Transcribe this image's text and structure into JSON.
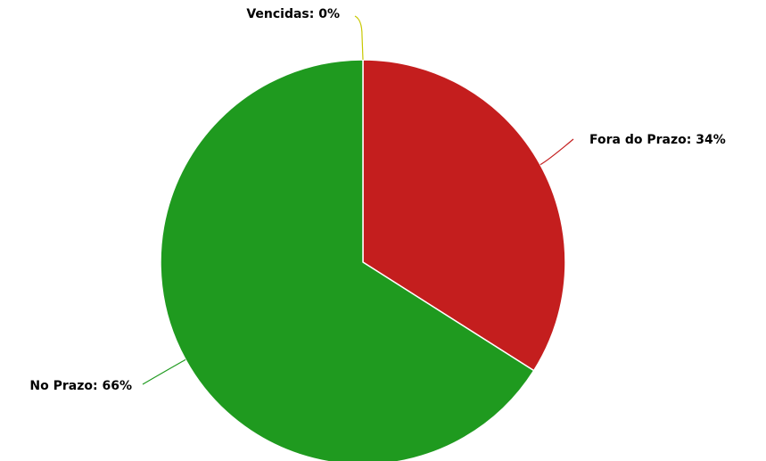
{
  "chart_data": {
    "type": "pie",
    "title": "",
    "slices": [
      {
        "label": "Vencidas",
        "value": 0,
        "display": "Vencidas: 0%",
        "color": "#c8c800"
      },
      {
        "label": "Fora do Prazo",
        "value": 34,
        "display": "Fora do Prazo: 34%",
        "color": "#c41e1e"
      },
      {
        "label": "No Prazo",
        "value": 66,
        "display": "No Prazo: 66%",
        "color": "#1f9a1f"
      }
    ],
    "legend": "none",
    "data_labels": "outside with leader lines"
  }
}
